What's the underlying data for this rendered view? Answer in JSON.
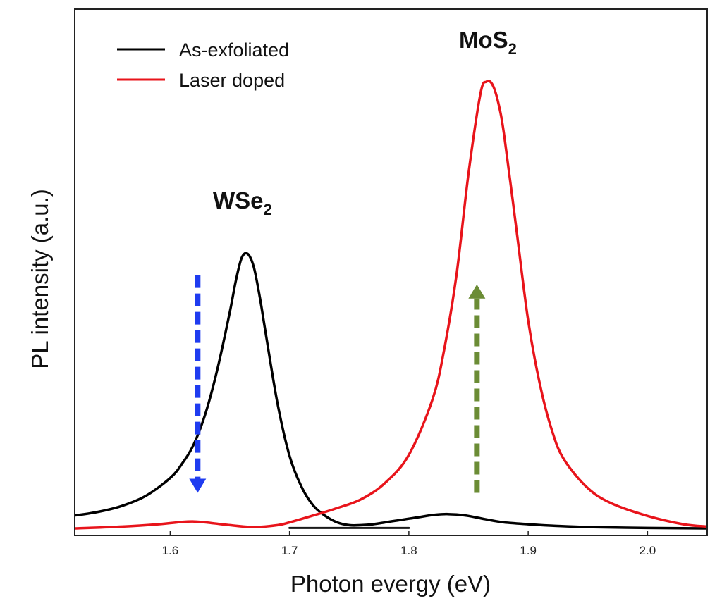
{
  "chart_data": {
    "type": "line",
    "title": "",
    "xlabel": "Photon evergy (eV)",
    "ylabel": "PL intensity (a.u.)",
    "xlim": [
      1.52,
      2.05
    ],
    "ylim": [
      0,
      1.0
    ],
    "xticks": [
      {
        "value": 1.6,
        "label": "1.6"
      },
      {
        "value": 1.7,
        "label": "1.7"
      },
      {
        "value": 1.8,
        "label": "1.8"
      },
      {
        "value": 1.9,
        "label": "1.9"
      },
      {
        "value": 2.0,
        "label": "2.0"
      }
    ],
    "legend": {
      "position": "top-left",
      "entries": [
        {
          "label": "As-exfoliated",
          "color": "#000000"
        },
        {
          "label": "Laser doped",
          "color": "#e8141b"
        }
      ]
    },
    "series": [
      {
        "name": "As-exfoliated",
        "color": "#000000",
        "x": [
          1.52,
          1.54,
          1.56,
          1.58,
          1.6,
          1.61,
          1.62,
          1.63,
          1.64,
          1.65,
          1.655,
          1.66,
          1.665,
          1.67,
          1.675,
          1.68,
          1.69,
          1.7,
          1.71,
          1.72,
          1.73,
          1.74,
          1.75,
          1.76,
          1.77,
          1.78,
          1.79,
          1.8,
          1.81,
          1.82,
          1.83,
          1.84,
          1.85,
          1.86,
          1.87,
          1.88,
          1.9,
          1.92,
          1.95,
          2.0,
          2.05
        ],
        "y": [
          0.031,
          0.039,
          0.052,
          0.074,
          0.112,
          0.143,
          0.186,
          0.255,
          0.352,
          0.471,
          0.538,
          0.588,
          0.596,
          0.568,
          0.504,
          0.425,
          0.272,
          0.16,
          0.093,
          0.052,
          0.03,
          0.016,
          0.01,
          0.01,
          0.012,
          0.016,
          0.02,
          0.024,
          0.028,
          0.032,
          0.034,
          0.033,
          0.03,
          0.025,
          0.02,
          0.016,
          0.012,
          0.009,
          0.006,
          0.004,
          0.003
        ]
      },
      {
        "name": "Laser doped",
        "color": "#e8141b",
        "x": [
          1.52,
          1.56,
          1.59,
          1.61,
          1.62,
          1.63,
          1.65,
          1.67,
          1.69,
          1.7,
          1.72,
          1.74,
          1.76,
          1.78,
          1.8,
          1.82,
          1.83,
          1.84,
          1.85,
          1.86,
          1.865,
          1.87,
          1.875,
          1.88,
          1.89,
          1.9,
          1.91,
          1.92,
          1.93,
          1.95,
          1.97,
          2.0,
          2.03,
          2.05
        ],
        "y": [
          0.003,
          0.007,
          0.012,
          0.017,
          0.018,
          0.016,
          0.01,
          0.006,
          0.01,
          0.016,
          0.031,
          0.047,
          0.066,
          0.101,
          0.162,
          0.283,
          0.395,
          0.552,
          0.77,
          0.942,
          0.968,
          0.962,
          0.922,
          0.85,
          0.652,
          0.452,
          0.312,
          0.214,
          0.152,
          0.09,
          0.057,
          0.03,
          0.012,
          0.007
        ]
      },
      {
        "name": "Baseline",
        "color": "#1a1a1a",
        "x": [
          1.7,
          1.8
        ],
        "y": [
          0.004,
          0.004
        ]
      }
    ],
    "annotations": [
      {
        "text": "WSe",
        "subscript": "2",
        "x": 1.653,
        "y": 0.7
      },
      {
        "text": "MoS",
        "subscript": "2",
        "x": 1.863,
        "y": 1.02
      }
    ],
    "arrows": [
      {
        "name": "decrease-arrow",
        "color": "#1f3cf0",
        "direction": "down",
        "x": 1.623,
        "y_start": 0.55,
        "y_end": 0.08
      },
      {
        "name": "increase-arrow",
        "color": "#6b8c35",
        "direction": "up",
        "x": 1.857,
        "y_start": 0.08,
        "y_end": 0.53
      }
    ]
  }
}
